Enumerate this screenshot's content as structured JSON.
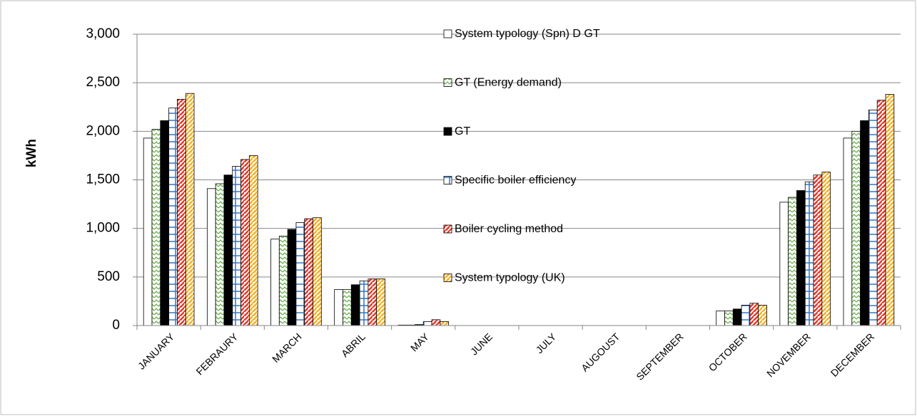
{
  "chart_data": {
    "type": "bar",
    "y_label": "kWh",
    "categories": [
      "JANUARY",
      "FEBRAURY",
      "MARCH",
      "ABRIL",
      "MAY",
      "JUNE",
      "JULY",
      "AUGOUST",
      "SEPTEMBER",
      "OCTOBER",
      "NOVEMBER",
      "DECEMBER"
    ],
    "series": [
      {
        "name": "System typology (Spn) D GT",
        "color": "#ffffff",
        "pattern": "solid",
        "values": [
          1930,
          1410,
          890,
          370,
          5,
          0,
          0,
          0,
          0,
          150,
          1270,
          1930
        ]
      },
      {
        "name": "GT (Energy demand)",
        "color": "#6ab04c",
        "pattern": "zigzag",
        "values": [
          2020,
          1460,
          920,
          370,
          5,
          0,
          0,
          0,
          0,
          150,
          1320,
          2000
        ]
      },
      {
        "name": "GT",
        "color": "#000000",
        "pattern": "solid",
        "values": [
          2110,
          1550,
          990,
          420,
          10,
          0,
          0,
          0,
          0,
          170,
          1390,
          2110
        ]
      },
      {
        "name": "Specific boiler efficiency",
        "color": "#2e75c8",
        "pattern": "grid",
        "values": [
          2240,
          1640,
          1060,
          460,
          40,
          0,
          0,
          0,
          0,
          210,
          1480,
          2220
        ]
      },
      {
        "name": "Boiler cycling method",
        "color": "#e8392b",
        "pattern": "stripes",
        "values": [
          2330,
          1710,
          1100,
          480,
          60,
          0,
          0,
          0,
          0,
          230,
          1550,
          2320
        ]
      },
      {
        "name": "System typology (UK)",
        "color": "#f5b022",
        "pattern": "stripes",
        "values": [
          2390,
          1750,
          1110,
          480,
          40,
          0,
          0,
          0,
          0,
          210,
          1580,
          2380
        ]
      }
    ],
    "ylim": [
      0,
      3000
    ],
    "yticks": [
      0,
      {
        "value": 500,
        "label": "500"
      },
      {
        "value": 1000,
        "label": "1,000"
      },
      {
        "value": 1500,
        "label": "1,500"
      },
      {
        "value": 2000,
        "label": "2,000"
      },
      {
        "value": 2500,
        "label": "2,500"
      },
      {
        "value": 3000,
        "label": "3,000"
      }
    ],
    "grid": true
  }
}
